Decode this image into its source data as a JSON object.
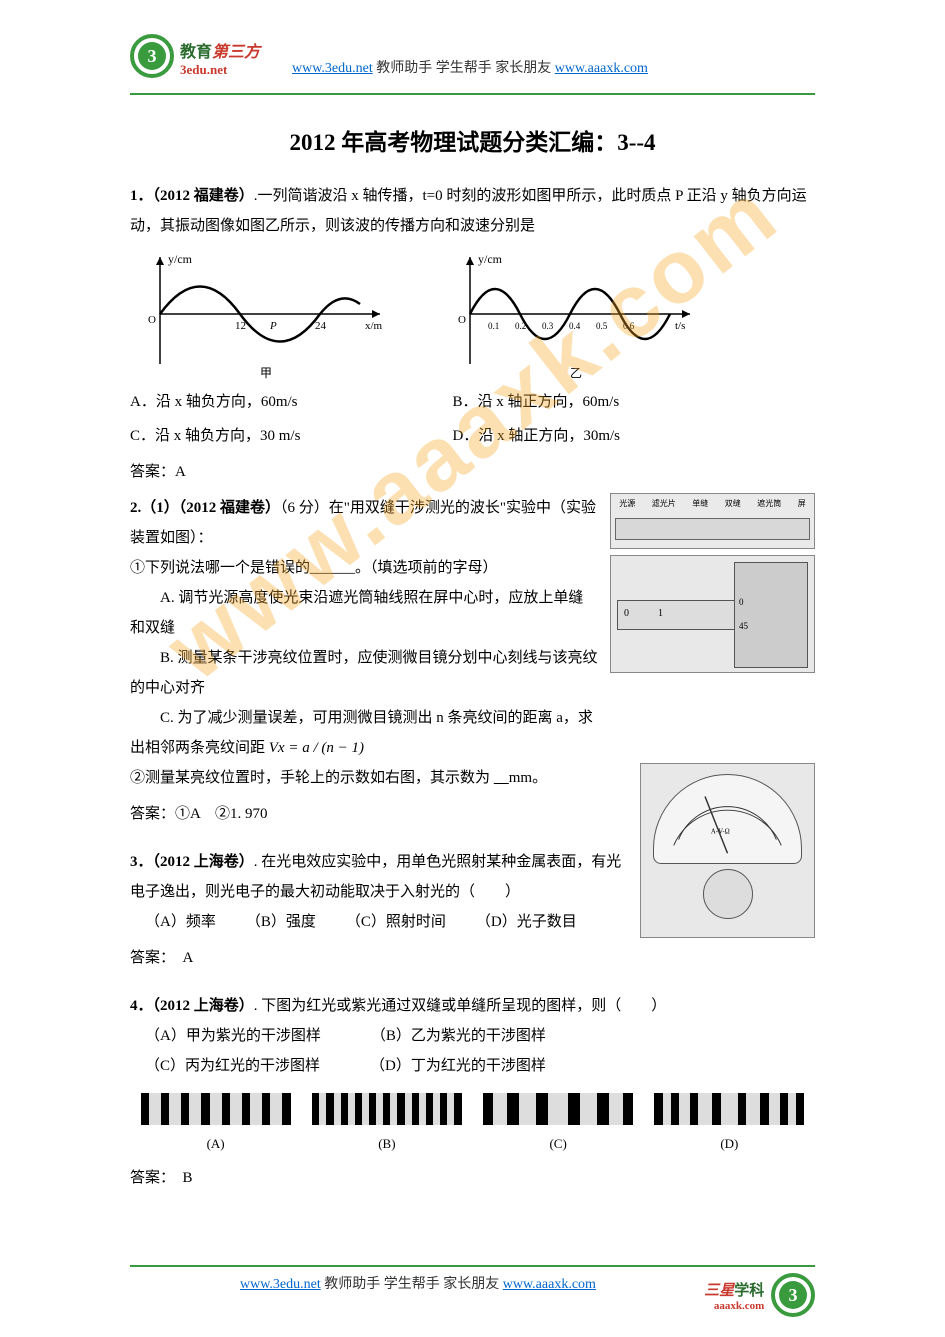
{
  "header": {
    "link1": "www.3edu.net",
    "middle": "教师助手  学生帮手  家长朋友",
    "link2": "www.aaaxk.com",
    "logo_cn": "教育",
    "logo_red": "第三方",
    "logo_url": "3edu.net",
    "logo_num": "3"
  },
  "title": "2012 年高考物理试题分类汇编：3--4",
  "q1": {
    "stem1": "1．（2012 福建卷）",
    "stem2": ".一列简谐波沿 x 轴传播，t=0 时刻的波形如图甲所示，此时质点 P 正沿 y 轴负方向运动，其振动图像如图乙所示，则该波的传播方向和波速分别是",
    "fig1_ylabel": "y/cm",
    "fig1_x1": "12",
    "fig1_xP": "P",
    "fig1_x2": "24",
    "fig1_xunit": "x/m",
    "fig1_cap": "甲",
    "fig2_ylabel": "y/cm",
    "fig2_ticks": [
      "0.1",
      "0.2",
      "0.3",
      "0.4",
      "0.5",
      "0.6"
    ],
    "fig2_xunit": "t/s",
    "fig2_cap": "乙",
    "optA": "A．沿 x 轴负方向，60m/s",
    "optB": "B．沿 x 轴正方向，60m/s",
    "optC": "C．沿 x 轴负方向，30 m/s",
    "optD": "D．沿 x 轴正方向，30m/s",
    "answer": "答案：A"
  },
  "q2": {
    "stem_a": "2.（1）（2012 福建卷）",
    "stem_b": "（6 分）在\"用双缝干涉测光的波长\"实验中（实验装置如图）：",
    "p1": "①下列说法哪一个是错误的______。（填选项前的字母）",
    "optA": "A. 调节光源高度使光束沿遮光筒轴线照在屏中心时，应放上单缝和双缝",
    "optB": "B. 测量某条干涉亮纹位置时，应使测微目镜分划中心刻线与该亮纹的中心对齐",
    "optC": "C. 为了减少测量误差，可用测微目镜测出 n 条亮纹间的距离 a，求",
    "formula_pre": "出相邻两条亮纹间距",
    "formula": "Vx = a / (n − 1)",
    "p2_a": "②测量某亮纹位置时，手轮上的示数如右图，其示数为 ",
    "p2_b": "mm。",
    "answer": "答案：①A　②1. 970",
    "apparatus_labels": [
      "光源",
      "滤光片",
      "单缝",
      "双缝",
      "遮光筒",
      "屏"
    ]
  },
  "q3": {
    "stem_a": "3．（2012 上海卷）",
    "stem_b": ". 在光电效应实验中，用单色光照射某种金属表面，有光电子逸出，则光电子的最大初动能取决于入射光的（　　）",
    "optA": "（A）频率",
    "optB": "（B）强度",
    "optC": "（C）照射时间",
    "optD": "（D）光子数目",
    "answer": "答案：　A"
  },
  "q4": {
    "stem_a": "4．（2012 上海卷）",
    "stem_b": ". 下图为红光或紫光通过双缝或单缝所呈现的图样，则（　　）",
    "optA": "（A）甲为紫光的干涉图样",
    "optB": "（B）乙为紫光的干涉图样",
    "optC": "（C）丙为红光的干涉图样",
    "optD": "（D）丁为红光的干涉图样",
    "labels": [
      "(A)",
      "(B)",
      "(C)",
      "(D)"
    ],
    "fringes": [
      {
        "count": 7,
        "width": 12
      },
      {
        "count": 10,
        "width": 7
      },
      {
        "count": 5,
        "width": 14,
        "varied": true
      },
      {
        "count": 7,
        "width": 8,
        "varied": true
      }
    ],
    "answer": "答案：　B"
  },
  "footer": {
    "link1": "www.3edu.net",
    "middle": "教师助手  学生帮手  家长朋友",
    "link2": "www.aaaxk.com",
    "sx": "三星",
    "xk": "学科",
    "url": "aaaxk.com",
    "logo_num": "3"
  },
  "watermark": "www.aaaxk.com",
  "colors": {
    "green": "#3a9b3e",
    "red": "#c93a2e",
    "link": "#0066cc",
    "watermark": "rgba(245,166,35,0.35)"
  }
}
